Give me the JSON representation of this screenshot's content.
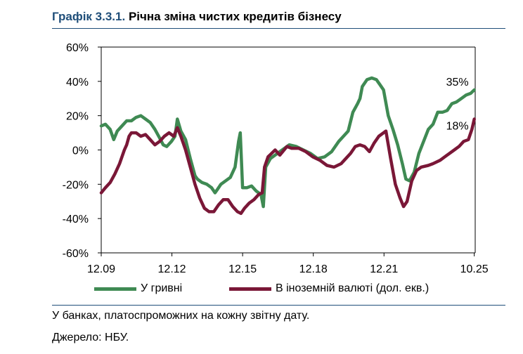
{
  "header": {
    "prefix": "Графік 3.3.1.",
    "title": "Річна зміна чистих кредитів бізнесу"
  },
  "notes": [
    "У банках, платоспроможних на кожну звітну дату.",
    "Джерело: НБУ."
  ],
  "colors": {
    "uah": "#3F8A53",
    "fx": "#7A1737",
    "axis": "#000000",
    "rule": "#1F4E79"
  },
  "chart_data": {
    "type": "line",
    "ylim": [
      -60,
      60
    ],
    "yticks": [
      "60%",
      "40%",
      "20%",
      "0%",
      "-20%",
      "-40%",
      "-60%"
    ],
    "xlim": [
      2009.92,
      2025.79
    ],
    "xticks": [
      {
        "t": 2009.92,
        "label": "12.09"
      },
      {
        "t": 2012.92,
        "label": "12.12"
      },
      {
        "t": 2015.92,
        "label": "12.15"
      },
      {
        "t": 2018.92,
        "label": "12.18"
      },
      {
        "t": 2021.92,
        "label": "12.21"
      },
      {
        "t": 2025.75,
        "label": "10.25"
      }
    ],
    "grid": false,
    "legend_position": "bottom",
    "series": [
      {
        "name": "У гривні",
        "end_label": "35%",
        "points": [
          [
            2009.92,
            14
          ],
          [
            2010.1,
            15
          ],
          [
            2010.3,
            12
          ],
          [
            2010.45,
            6
          ],
          [
            2010.6,
            11
          ],
          [
            2010.8,
            14
          ],
          [
            2011.0,
            17
          ],
          [
            2011.2,
            17
          ],
          [
            2011.4,
            19
          ],
          [
            2011.6,
            20
          ],
          [
            2011.8,
            18
          ],
          [
            2012.0,
            16
          ],
          [
            2012.2,
            12
          ],
          [
            2012.4,
            7
          ],
          [
            2012.55,
            3
          ],
          [
            2012.7,
            2
          ],
          [
            2012.9,
            5
          ],
          [
            2013.05,
            8
          ],
          [
            2013.15,
            18
          ],
          [
            2013.3,
            11
          ],
          [
            2013.5,
            6
          ],
          [
            2013.7,
            -5
          ],
          [
            2013.9,
            -15
          ],
          [
            2014.0,
            -17
          ],
          [
            2014.2,
            -19
          ],
          [
            2014.4,
            -20
          ],
          [
            2014.6,
            -22
          ],
          [
            2014.75,
            -25
          ],
          [
            2014.85,
            -23
          ],
          [
            2015.0,
            -20
          ],
          [
            2015.2,
            -18
          ],
          [
            2015.4,
            -16
          ],
          [
            2015.6,
            -10
          ],
          [
            2015.75,
            5
          ],
          [
            2015.82,
            10
          ],
          [
            2015.92,
            -22
          ],
          [
            2016.1,
            -22
          ],
          [
            2016.3,
            -21
          ],
          [
            2016.5,
            -24
          ],
          [
            2016.7,
            -26
          ],
          [
            2016.8,
            -33
          ],
          [
            2016.9,
            -10
          ],
          [
            2017.1,
            -5
          ],
          [
            2017.3,
            -3
          ],
          [
            2017.6,
            0
          ],
          [
            2017.9,
            3
          ],
          [
            2018.2,
            2
          ],
          [
            2018.5,
            0
          ],
          [
            2018.8,
            -2
          ],
          [
            2019.1,
            -5
          ],
          [
            2019.4,
            -4
          ],
          [
            2019.7,
            -1
          ],
          [
            2020.0,
            5
          ],
          [
            2020.2,
            8
          ],
          [
            2020.4,
            11
          ],
          [
            2020.6,
            22
          ],
          [
            2020.8,
            27
          ],
          [
            2020.9,
            30
          ],
          [
            2021.0,
            37
          ],
          [
            2021.2,
            41
          ],
          [
            2021.4,
            42
          ],
          [
            2021.6,
            41
          ],
          [
            2021.75,
            38
          ],
          [
            2021.9,
            35
          ],
          [
            2022.1,
            20
          ],
          [
            2022.3,
            12
          ],
          [
            2022.5,
            3
          ],
          [
            2022.7,
            -8
          ],
          [
            2022.85,
            -17
          ],
          [
            2023.0,
            -18
          ],
          [
            2023.2,
            -13
          ],
          [
            2023.4,
            -2
          ],
          [
            2023.6,
            5
          ],
          [
            2023.8,
            12
          ],
          [
            2024.0,
            15
          ],
          [
            2024.2,
            22
          ],
          [
            2024.4,
            22
          ],
          [
            2024.6,
            23
          ],
          [
            2024.8,
            27
          ],
          [
            2025.0,
            28
          ],
          [
            2025.2,
            30
          ],
          [
            2025.4,
            32
          ],
          [
            2025.6,
            33
          ],
          [
            2025.75,
            35
          ]
        ]
      },
      {
        "name": "В іноземній валюті (дол. екв.)",
        "end_label": "18%",
        "points": [
          [
            2009.92,
            -25
          ],
          [
            2010.1,
            -22
          ],
          [
            2010.3,
            -19
          ],
          [
            2010.5,
            -14
          ],
          [
            2010.7,
            -8
          ],
          [
            2010.9,
            0
          ],
          [
            2011.0,
            3
          ],
          [
            2011.1,
            8
          ],
          [
            2011.2,
            10
          ],
          [
            2011.4,
            10
          ],
          [
            2011.6,
            8
          ],
          [
            2011.8,
            9
          ],
          [
            2012.0,
            6
          ],
          [
            2012.2,
            3
          ],
          [
            2012.4,
            5
          ],
          [
            2012.6,
            8
          ],
          [
            2012.8,
            10
          ],
          [
            2013.0,
            8
          ],
          [
            2013.15,
            13
          ],
          [
            2013.3,
            8
          ],
          [
            2013.5,
            0
          ],
          [
            2013.7,
            -10
          ],
          [
            2013.9,
            -20
          ],
          [
            2014.1,
            -28
          ],
          [
            2014.3,
            -34
          ],
          [
            2014.5,
            -36
          ],
          [
            2014.7,
            -36
          ],
          [
            2014.9,
            -32
          ],
          [
            2015.1,
            -29
          ],
          [
            2015.3,
            -29
          ],
          [
            2015.5,
            -33
          ],
          [
            2015.7,
            -36
          ],
          [
            2015.85,
            -37
          ],
          [
            2016.0,
            -34
          ],
          [
            2016.2,
            -31
          ],
          [
            2016.4,
            -29
          ],
          [
            2016.6,
            -26
          ],
          [
            2016.75,
            -25
          ],
          [
            2016.85,
            -10
          ],
          [
            2017.0,
            -4
          ],
          [
            2017.3,
            0
          ],
          [
            2017.5,
            -3
          ],
          [
            2017.8,
            2
          ],
          [
            2018.0,
            1
          ],
          [
            2018.3,
            1
          ],
          [
            2018.6,
            -1
          ],
          [
            2018.9,
            -4
          ],
          [
            2019.2,
            -6
          ],
          [
            2019.5,
            -9
          ],
          [
            2019.8,
            -10
          ],
          [
            2020.1,
            -8
          ],
          [
            2020.3,
            -5
          ],
          [
            2020.5,
            -2
          ],
          [
            2020.7,
            2
          ],
          [
            2020.9,
            3
          ],
          [
            2021.1,
            2
          ],
          [
            2021.3,
            -1
          ],
          [
            2021.5,
            4
          ],
          [
            2021.7,
            8
          ],
          [
            2021.9,
            10
          ],
          [
            2022.0,
            11
          ],
          [
            2022.2,
            -5
          ],
          [
            2022.4,
            -20
          ],
          [
            2022.6,
            -28
          ],
          [
            2022.75,
            -33
          ],
          [
            2022.9,
            -30
          ],
          [
            2023.1,
            -18
          ],
          [
            2023.3,
            -12
          ],
          [
            2023.5,
            -10
          ],
          [
            2023.8,
            -9
          ],
          [
            2024.0,
            -8
          ],
          [
            2024.3,
            -6
          ],
          [
            2024.6,
            -3
          ],
          [
            2024.9,
            0
          ],
          [
            2025.1,
            2
          ],
          [
            2025.3,
            5
          ],
          [
            2025.5,
            6
          ],
          [
            2025.65,
            12
          ],
          [
            2025.75,
            18
          ]
        ]
      }
    ]
  }
}
